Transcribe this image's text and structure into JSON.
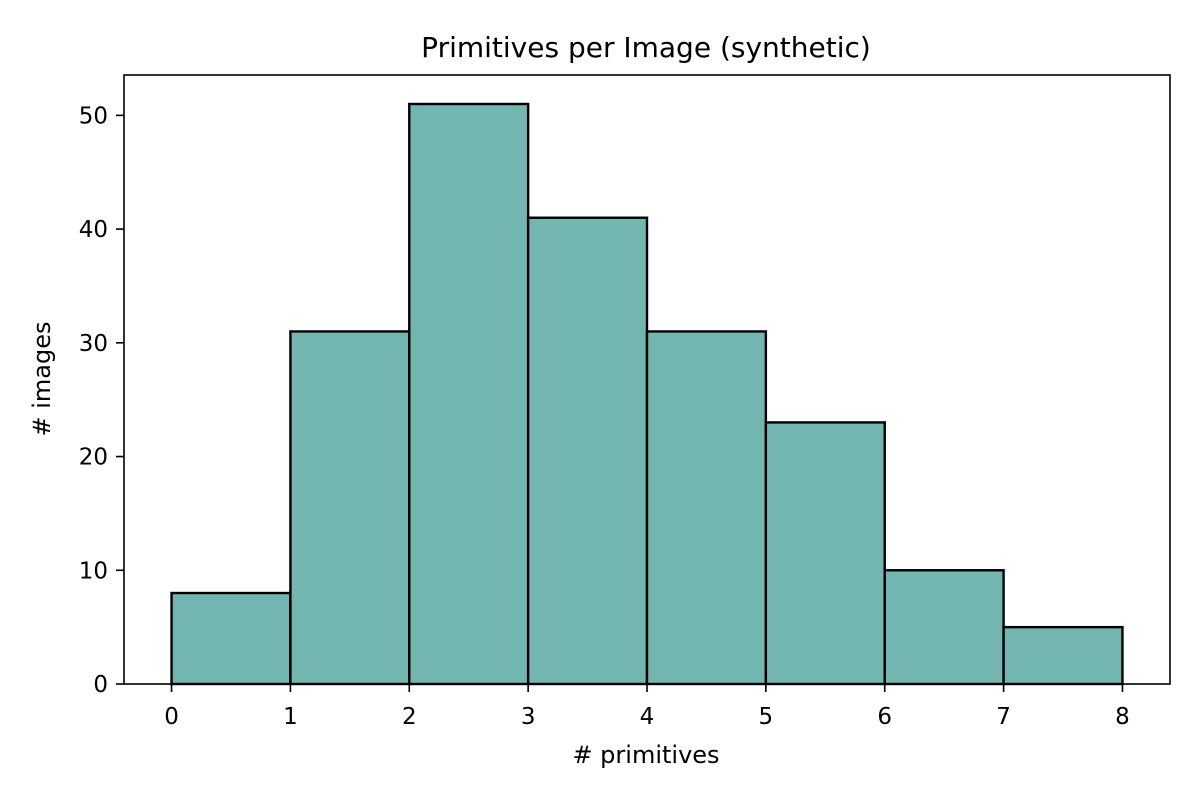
{
  "chart_data": {
    "type": "bar",
    "title": "Primitives per Image (synthetic)",
    "xlabel": "# primitives",
    "ylabel": "# images",
    "bin_edges": [
      0,
      1,
      2,
      3,
      4,
      5,
      6,
      7,
      8
    ],
    "values": [
      8,
      31,
      51,
      41,
      31,
      23,
      10,
      5
    ],
    "x_ticks": [
      "0",
      "1",
      "2",
      "3",
      "4",
      "5",
      "6",
      "7",
      "8"
    ],
    "y_ticks": [
      "0",
      "10",
      "20",
      "30",
      "40",
      "50"
    ],
    "xlim": [
      -0.4,
      8.4
    ],
    "ylim": [
      0,
      53.55
    ],
    "grid": false,
    "bar_color": "#73b6b1",
    "edge_color": "#000000"
  }
}
